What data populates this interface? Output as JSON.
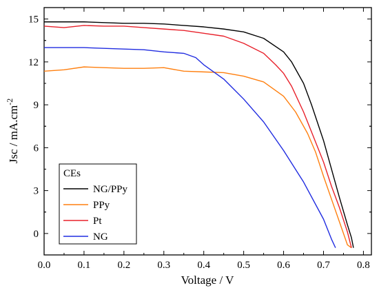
{
  "chart_data": {
    "type": "line",
    "xlabel": "Voltage / V",
    "ylabel_main": "Jsc / mA.cm",
    "ylabel_sup": "-2",
    "xlim": [
      0.0,
      0.82
    ],
    "ylim": [
      -1.5,
      15.8
    ],
    "xticks": [
      "0.0",
      "0.1",
      "0.2",
      "0.3",
      "0.4",
      "0.5",
      "0.6",
      "0.7",
      "0.8"
    ],
    "yticks": [
      "0",
      "3",
      "6",
      "9",
      "12",
      "15"
    ],
    "legend": {
      "title": "CEs",
      "placement": "bottom-left"
    },
    "series": [
      {
        "name": "NG/PPy",
        "color": "#000000",
        "x": [
          0.0,
          0.05,
          0.1,
          0.15,
          0.2,
          0.25,
          0.3,
          0.35,
          0.4,
          0.45,
          0.5,
          0.55,
          0.6,
          0.62,
          0.65,
          0.67,
          0.7,
          0.72,
          0.74,
          0.76,
          0.77,
          0.775
        ],
        "y": [
          14.8,
          14.8,
          14.8,
          14.75,
          14.7,
          14.7,
          14.65,
          14.55,
          14.45,
          14.3,
          14.1,
          13.65,
          12.7,
          12.0,
          10.5,
          9.0,
          6.5,
          4.5,
          2.5,
          0.6,
          -0.3,
          -1.0
        ]
      },
      {
        "name": "PPy",
        "color": "#ff7f0e",
        "x": [
          0.0,
          0.05,
          0.1,
          0.15,
          0.2,
          0.25,
          0.3,
          0.35,
          0.4,
          0.45,
          0.5,
          0.55,
          0.6,
          0.63,
          0.66,
          0.68,
          0.7,
          0.72,
          0.74,
          0.76,
          0.77
        ],
        "y": [
          11.35,
          11.45,
          11.65,
          11.6,
          11.55,
          11.55,
          11.6,
          11.35,
          11.3,
          11.25,
          11.0,
          10.6,
          9.6,
          8.5,
          7.0,
          5.7,
          4.0,
          2.4,
          0.8,
          -0.8,
          -1.0
        ]
      },
      {
        "name": "Pt",
        "color": "#e8202a",
        "x": [
          0.0,
          0.05,
          0.1,
          0.15,
          0.2,
          0.25,
          0.3,
          0.35,
          0.4,
          0.45,
          0.5,
          0.55,
          0.58,
          0.6,
          0.62,
          0.65,
          0.67,
          0.7,
          0.72,
          0.74,
          0.76,
          0.77
        ],
        "y": [
          14.5,
          14.4,
          14.55,
          14.5,
          14.5,
          14.4,
          14.3,
          14.2,
          14.0,
          13.8,
          13.3,
          12.6,
          11.8,
          11.2,
          10.3,
          8.5,
          7.1,
          5.0,
          3.3,
          1.8,
          0.1,
          -1.0
        ]
      },
      {
        "name": "NG",
        "color": "#1f2be0",
        "x": [
          0.0,
          0.05,
          0.1,
          0.15,
          0.2,
          0.25,
          0.3,
          0.35,
          0.38,
          0.4,
          0.45,
          0.5,
          0.55,
          0.6,
          0.65,
          0.7,
          0.72,
          0.73
        ],
        "y": [
          13.0,
          13.0,
          13.0,
          12.95,
          12.9,
          12.85,
          12.7,
          12.6,
          12.3,
          11.8,
          10.8,
          9.4,
          7.8,
          5.8,
          3.6,
          1.0,
          -0.4,
          -1.0
        ]
      }
    ]
  }
}
